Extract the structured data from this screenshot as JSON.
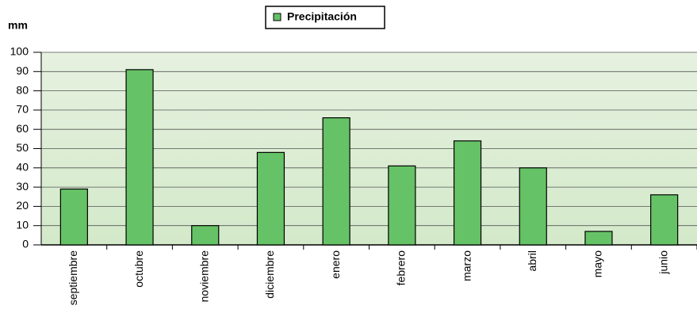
{
  "chart_data": {
    "type": "bar",
    "y_label": "mm",
    "categories": [
      "septiembre",
      "octubre",
      "noviembre",
      "diciembre",
      "enero",
      "febrero",
      "marzo",
      "abril",
      "mayo",
      "junio"
    ],
    "series": [
      {
        "name": "Precipitación",
        "color": "#66c266",
        "values": [
          29,
          91,
          10,
          48,
          66,
          41,
          54,
          40,
          7,
          26
        ]
      }
    ],
    "ylim": [
      0,
      100
    ],
    "yticks": [
      0,
      10,
      20,
      30,
      40,
      50,
      60,
      70,
      80,
      90,
      100
    ],
    "grid": true
  }
}
